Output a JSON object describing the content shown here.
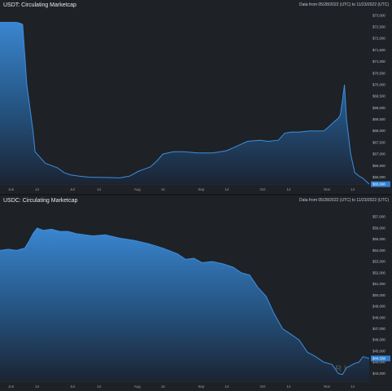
{
  "chart_data": [
    {
      "type": "area",
      "title": "USDT: Circulating Marketcap",
      "date_range_text": "Data from 05/28/2022 (UTC) to 11/23/2022 (UTC)",
      "watermark": "MESSARI",
      "x_ticks": [
        "Jun",
        "14",
        "Jul",
        "14",
        "Aug",
        "14",
        "Sep",
        "14",
        "Oct",
        "14",
        "Nov",
        "14"
      ],
      "y_ticks": [
        "$66,000",
        "$66,500",
        "$67,000",
        "$67,500",
        "$68,000",
        "$68,500",
        "$69,000",
        "$69,500",
        "$70,000",
        "$70,500",
        "$71,000",
        "$71,500",
        "$72,000",
        "$72,500",
        "$73,000"
      ],
      "current_value_label": "$65,696",
      "ylim": [
        65700,
        73100
      ],
      "xlim": [
        "2022-05-28",
        "2022-11-23"
      ],
      "color": "#3b8fe0",
      "series": [
        {
          "x": [
            "2022-05-28",
            "2022-06-05",
            "2022-06-07",
            "2022-06-08",
            "2022-06-10",
            "2022-06-13",
            "2022-06-14",
            "2022-06-16",
            "2022-06-19",
            "2022-06-22",
            "2022-06-25",
            "2022-06-28",
            "2022-07-01",
            "2022-07-05",
            "2022-07-10",
            "2022-07-15",
            "2022-07-20",
            "2022-07-25",
            "2022-07-27",
            "2022-07-30",
            "2022-08-03",
            "2022-08-06",
            "2022-08-09",
            "2022-08-12",
            "2022-08-15",
            "2022-08-20",
            "2022-08-25",
            "2022-09-01",
            "2022-09-08",
            "2022-09-12",
            "2022-09-15",
            "2022-09-20",
            "2022-09-25",
            "2022-10-01",
            "2022-10-05",
            "2022-10-10",
            "2022-10-13",
            "2022-10-16",
            "2022-10-20",
            "2022-10-25",
            "2022-10-28",
            "2022-11-01",
            "2022-11-03",
            "2022-11-06",
            "2022-11-08",
            "2022-11-09",
            "2022-11-10",
            "2022-11-11",
            "2022-11-12",
            "2022-11-14",
            "2022-11-16",
            "2022-11-18",
            "2022-11-20",
            "2022-11-23"
          ],
          "values": [
            72700,
            72700,
            72650,
            72600,
            70000,
            68000,
            67100,
            66900,
            66600,
            66500,
            66400,
            66200,
            66100,
            66050,
            66000,
            65990,
            65980,
            65970,
            66000,
            66050,
            66250,
            66350,
            66450,
            66700,
            67000,
            67100,
            67100,
            67050,
            67050,
            67100,
            67150,
            67350,
            67550,
            67600,
            67550,
            67600,
            67900,
            67950,
            67950,
            68000,
            68000,
            68000,
            68150,
            68400,
            68550,
            68700,
            69300,
            70000,
            68500,
            67000,
            66200,
            66050,
            65950,
            65696
          ]
        }
      ]
    },
    {
      "type": "area",
      "title": "USDC: Circulating Marketcap",
      "date_range_text": "Data from 05/28/2022 (UTC) to 11/23/2022 (UTC)",
      "watermark": "MESSARI",
      "x_ticks": [
        "Jun",
        "14",
        "Jul",
        "14",
        "Aug",
        "14",
        "Sep",
        "14",
        "Oct",
        "14",
        "Nov",
        "14"
      ],
      "y_ticks": [
        "$43,000",
        "$44,000",
        "$45,000",
        "$46,000",
        "$47,000",
        "$48,000",
        "$49,000",
        "$50,000",
        "$51,000",
        "$52,000",
        "$53,000",
        "$54,000",
        "$55,000",
        "$56,000",
        "$57,000"
      ],
      "current_value_label": "$44,338",
      "ylim": [
        42300,
        57600
      ],
      "xlim": [
        "2022-05-28",
        "2022-11-23"
      ],
      "color": "#3b8fe0",
      "series": [
        {
          "x": [
            "2022-05-28",
            "2022-06-01",
            "2022-06-05",
            "2022-06-09",
            "2022-06-11",
            "2022-06-13",
            "2022-06-15",
            "2022-06-18",
            "2022-06-22",
            "2022-06-26",
            "2022-06-30",
            "2022-07-04",
            "2022-07-08",
            "2022-07-12",
            "2022-07-18",
            "2022-07-25",
            "2022-08-01",
            "2022-08-08",
            "2022-08-15",
            "2022-08-22",
            "2022-08-26",
            "2022-08-30",
            "2022-09-03",
            "2022-09-08",
            "2022-09-13",
            "2022-09-18",
            "2022-09-22",
            "2022-09-26",
            "2022-09-30",
            "2022-10-04",
            "2022-10-08",
            "2022-10-12",
            "2022-10-16",
            "2022-10-20",
            "2022-10-24",
            "2022-10-28",
            "2022-11-01",
            "2022-11-05",
            "2022-11-08",
            "2022-11-10",
            "2022-11-12",
            "2022-11-14",
            "2022-11-16",
            "2022-11-18",
            "2022-11-20",
            "2022-11-23"
          ],
          "values": [
            54000,
            54100,
            54000,
            54200,
            54800,
            55500,
            56000,
            55800,
            55900,
            55700,
            55700,
            55500,
            55400,
            55300,
            55400,
            55100,
            54900,
            54600,
            54200,
            53700,
            53200,
            53300,
            52900,
            53000,
            52800,
            52500,
            52000,
            51800,
            50700,
            49900,
            48300,
            47000,
            46500,
            46000,
            44900,
            44500,
            44000,
            43800,
            43000,
            42900,
            43500,
            43700,
            43900,
            44000,
            44500,
            44338
          ]
        }
      ]
    }
  ]
}
